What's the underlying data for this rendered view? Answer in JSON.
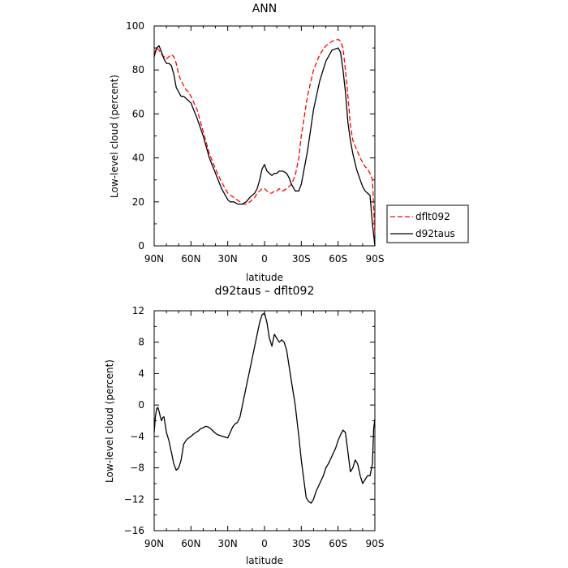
{
  "chart_data": [
    {
      "type": "line",
      "title": "ANN",
      "xlabel": "latitude",
      "ylabel": "Low-level cloud (percent)",
      "xlim": [
        90,
        -90
      ],
      "ylim": [
        0,
        100
      ],
      "xticks": [
        90,
        60,
        30,
        0,
        -30,
        -60,
        -90
      ],
      "xtick_labels": [
        "90N",
        "60N",
        "30N",
        "0",
        "30S",
        "60S",
        "90S"
      ],
      "yticks": [
        0,
        20,
        40,
        60,
        80,
        100
      ],
      "ytick_labels": [
        "0",
        "20",
        "40",
        "60",
        "80",
        "100"
      ],
      "legend": {
        "placement": "right",
        "entries": [
          "dflt092",
          "d92taus"
        ]
      },
      "series": [
        {
          "name": "dflt092",
          "color": "#ff0000",
          "dash": "dashed",
          "x": [
            90,
            88,
            86,
            84,
            82,
            80,
            78,
            76,
            74,
            72,
            70,
            68,
            66,
            64,
            62,
            60,
            55,
            50,
            45,
            40,
            35,
            30,
            25,
            20,
            18,
            15,
            12,
            10,
            8,
            6,
            4,
            2,
            0,
            -2,
            -4,
            -6,
            -8,
            -10,
            -12,
            -15,
            -18,
            -20,
            -22,
            -25,
            -28,
            -30,
            -35,
            -40,
            -45,
            -50,
            -55,
            -60,
            -62,
            -64,
            -66,
            -68,
            -70,
            -72,
            -75,
            -78,
            -80,
            -82,
            -84,
            -86,
            -88,
            -90
          ],
          "y": [
            87,
            90,
            89,
            87,
            86,
            85,
            86,
            87,
            86,
            83,
            78,
            75,
            73,
            71,
            70,
            68,
            62,
            52,
            42,
            35,
            29,
            24,
            22,
            20,
            19,
            19,
            20,
            21,
            22,
            24,
            25,
            26,
            26,
            25,
            24,
            24,
            25,
            25,
            26,
            25,
            26,
            27,
            28,
            32,
            40,
            50,
            68,
            80,
            87,
            91,
            93,
            94,
            93,
            90,
            80,
            68,
            55,
            48,
            44,
            40,
            38,
            36,
            35,
            33,
            30,
            5
          ]
        },
        {
          "name": "d92taus",
          "color": "#000000",
          "dash": "solid",
          "x": [
            90,
            88,
            86,
            84,
            82,
            80,
            78,
            76,
            74,
            72,
            70,
            68,
            66,
            64,
            62,
            60,
            55,
            50,
            45,
            40,
            35,
            30,
            28,
            25,
            22,
            20,
            18,
            15,
            12,
            10,
            8,
            6,
            4,
            2,
            0,
            -2,
            -4,
            -6,
            -8,
            -10,
            -12,
            -15,
            -18,
            -20,
            -22,
            -25,
            -28,
            -30,
            -35,
            -40,
            -45,
            -50,
            -55,
            -60,
            -62,
            -64,
            -66,
            -68,
            -70,
            -72,
            -75,
            -78,
            -80,
            -82,
            -84,
            -86,
            -88,
            -90
          ],
          "y": [
            86,
            90,
            91,
            88,
            85,
            83,
            83,
            82,
            78,
            72,
            70,
            68,
            68,
            67,
            66,
            65,
            58,
            50,
            40,
            33,
            26,
            21,
            20,
            20,
            19,
            19,
            19,
            20,
            22,
            23,
            24,
            26,
            30,
            35,
            37,
            34,
            33,
            32,
            33,
            33,
            34,
            34,
            33,
            31,
            28,
            25,
            25,
            28,
            43,
            62,
            75,
            84,
            89,
            90,
            88,
            80,
            70,
            56,
            48,
            42,
            35,
            30,
            27,
            25,
            24,
            23,
            10,
            0
          ]
        }
      ]
    },
    {
      "type": "line",
      "title": "d92taus – dflt092",
      "xlabel": "latitude",
      "ylabel": "Low-level cloud (percent)",
      "xlim": [
        90,
        -90
      ],
      "ylim": [
        -16,
        12
      ],
      "xticks": [
        90,
        60,
        30,
        0,
        -30,
        -60,
        -90
      ],
      "xtick_labels": [
        "90N",
        "60N",
        "30N",
        "0",
        "30S",
        "60S",
        "90S"
      ],
      "yticks": [
        -16,
        -12,
        -8,
        -4,
        0,
        4,
        8,
        12
      ],
      "ytick_labels": [
        "−16",
        "−12",
        "−8",
        "−4",
        "0",
        "4",
        "8",
        "12"
      ],
      "series": [
        {
          "color": "#000000",
          "dash": "solid",
          "x": [
            90,
            89,
            88,
            87,
            86,
            85,
            84,
            83,
            82,
            80,
            78,
            76,
            74,
            72,
            70,
            68,
            66,
            64,
            62,
            60,
            58,
            56,
            54,
            52,
            50,
            48,
            46,
            44,
            42,
            40,
            38,
            36,
            34,
            32,
            30,
            28,
            26,
            24,
            22,
            20,
            18,
            16,
            14,
            12,
            10,
            8,
            6,
            4,
            2,
            0,
            -2,
            -4,
            -6,
            -8,
            -10,
            -12,
            -14,
            -16,
            -18,
            -20,
            -22,
            -25,
            -28,
            -30,
            -32,
            -34,
            -36,
            -38,
            -40,
            -42,
            -45,
            -48,
            -50,
            -52,
            -55,
            -58,
            -60,
            -62,
            -64,
            -66,
            -68,
            -70,
            -72,
            -74,
            -76,
            -78,
            -80,
            -82,
            -84,
            -86,
            -88,
            -89,
            -90
          ],
          "y": [
            -3.5,
            -1.5,
            -0.5,
            -0.3,
            -0.8,
            -1.5,
            -2.0,
            -1.6,
            -1.5,
            -3.5,
            -4.5,
            -6.0,
            -7.5,
            -8.3,
            -8.0,
            -7.0,
            -5.0,
            -4.5,
            -4.2,
            -4.0,
            -3.7,
            -3.5,
            -3.3,
            -3.0,
            -2.9,
            -2.7,
            -2.8,
            -3.0,
            -3.3,
            -3.6,
            -3.8,
            -3.9,
            -4.0,
            -4.1,
            -4.2,
            -3.5,
            -2.8,
            -2.4,
            -2.2,
            -1.5,
            0.0,
            1.5,
            3.0,
            4.5,
            6.0,
            7.5,
            9.0,
            10.5,
            11.5,
            11.7,
            10.5,
            8.5,
            7.5,
            9.0,
            8.5,
            8.0,
            8.3,
            8.0,
            7.0,
            5.0,
            3.0,
            0.0,
            -4.0,
            -7.0,
            -9.5,
            -11.8,
            -12.3,
            -12.5,
            -12.0,
            -11.0,
            -10.0,
            -9.0,
            -8.0,
            -7.5,
            -6.5,
            -5.5,
            -4.5,
            -3.8,
            -3.2,
            -3.5,
            -6.0,
            -8.5,
            -8.0,
            -7.0,
            -7.5,
            -9.0,
            -10.0,
            -9.5,
            -9.0,
            -9.0,
            -7.5,
            -3.0,
            -1.8
          ]
        }
      ]
    }
  ]
}
